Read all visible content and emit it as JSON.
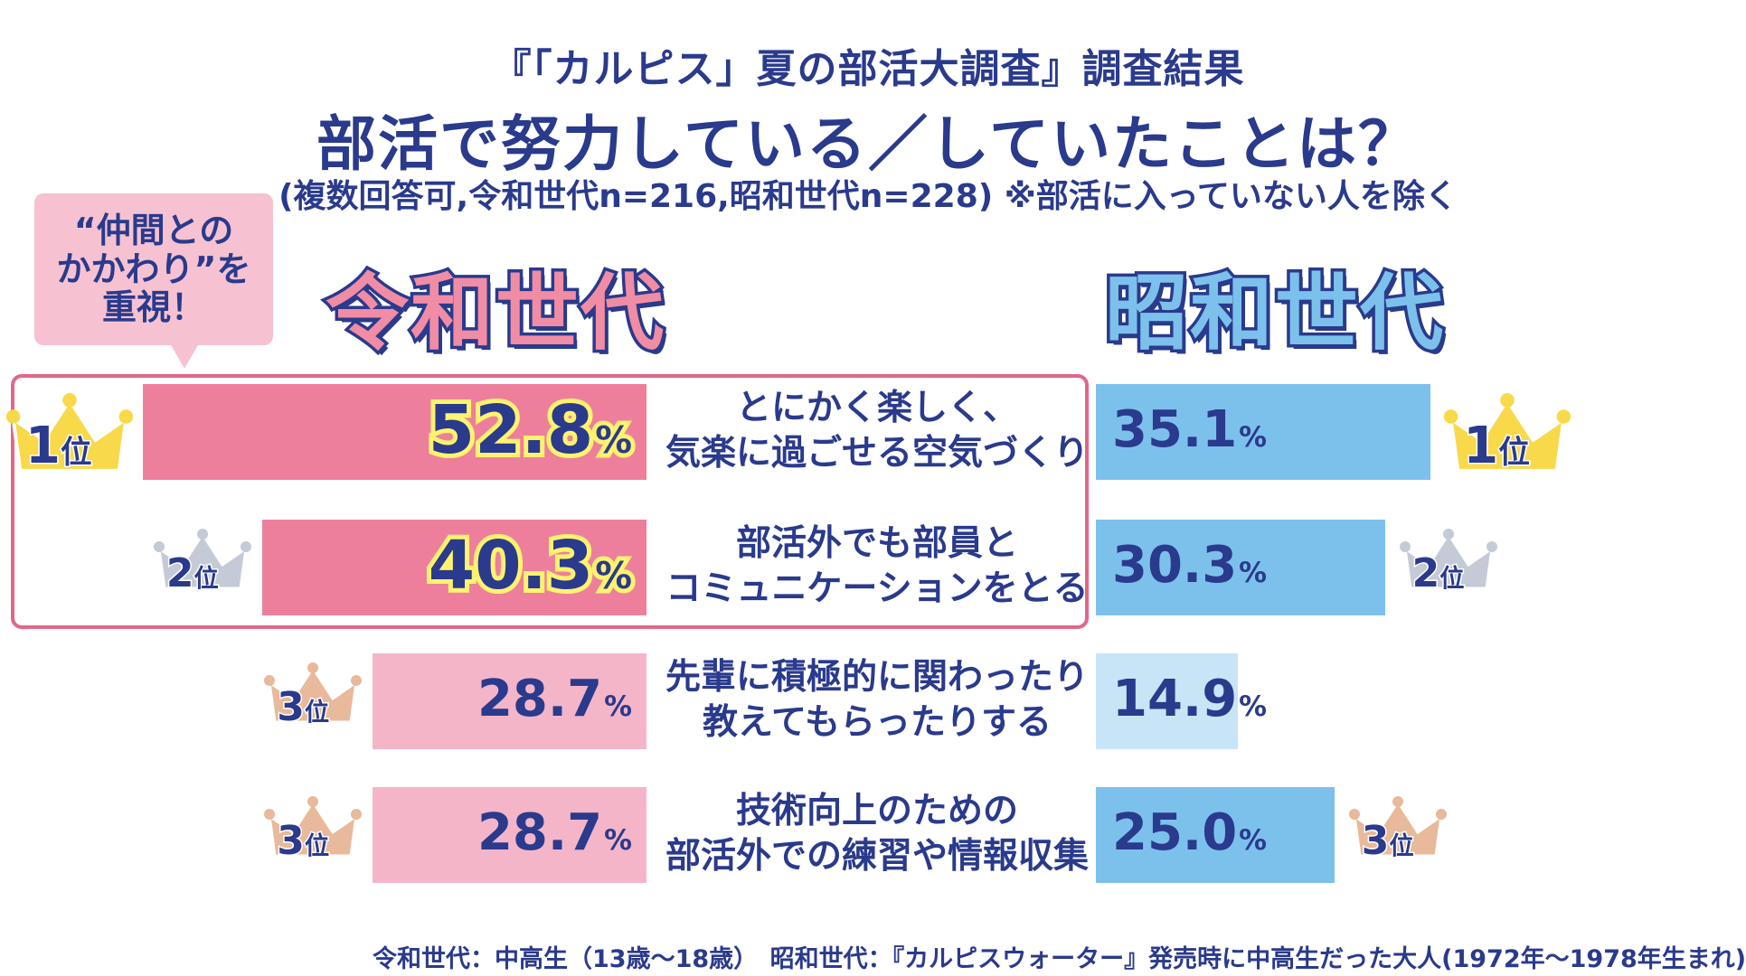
{
  "header": {
    "survey_title": "『「カルピス」夏の部活大調査』調査結果",
    "question": "部活で努力している／していたことは？",
    "note": "(複数回答可,令和世代n=216,昭和世代n=228) ※部活に入っていない人を除く"
  },
  "callout": {
    "text": "“仲間との\nかかわり”を\n重視！"
  },
  "generations": {
    "reiwa": "令和世代",
    "showa": "昭和世代"
  },
  "colors": {
    "reiwa_dark": "#ee7f9c",
    "reiwa_light": "#f5b5c8",
    "showa_dark": "#7cc1ec",
    "showa_light": "#c7e5f7",
    "text": "#2a3a8c",
    "highlight_border": "#e16789",
    "callout_bg": "#f6c2d1",
    "crown_gold": "#f8d94a",
    "crown_silver": "#c5cad7",
    "crown_bronze": "#e8b99a"
  },
  "chart_data": {
    "type": "bar",
    "layout": "butterfly",
    "title": "部活で努力している／していたことは？",
    "unit": "%",
    "categories": [
      "とにかく楽しく、\n気楽に過ごせる空気づくり",
      "部活外でも部員と\nコミュニケーションをとる",
      "先輩に積極的に関わったり\n教えてもらったりする",
      "技術向上のための\n部活外での練習や情報収集"
    ],
    "series": [
      {
        "name": "令和世代",
        "values": [
          52.8,
          40.3,
          28.7,
          28.7
        ],
        "labels": [
          "52.8",
          "40.3",
          "28.7",
          "28.7"
        ],
        "ranks": [
          "1",
          "2",
          "3",
          "3"
        ]
      },
      {
        "name": "昭和世代",
        "values": [
          35.1,
          30.3,
          14.9,
          25.0
        ],
        "labels": [
          "35.1",
          "30.3",
          "14.9",
          "25.0"
        ],
        "ranks": [
          "1",
          "2",
          "",
          "3"
        ]
      }
    ],
    "rank_suffix": "位",
    "highlighted_rows": [
      0,
      1
    ]
  },
  "footnote": "令和世代：中高生（13歳～18歳）　昭和世代：『カルピスウォーター』発売時に中高生だった大人(1972年～1978年生まれ)"
}
